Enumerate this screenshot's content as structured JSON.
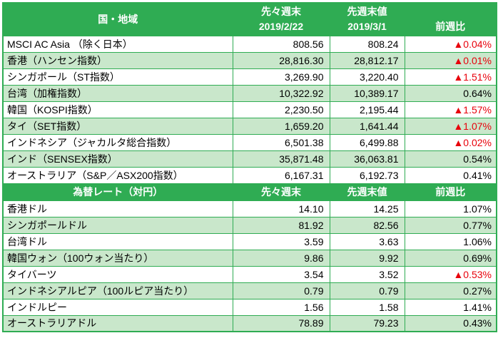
{
  "colors": {
    "header_green": "#2FAC53",
    "row_light_green": "#C9E7CB",
    "border_green": "#2FAC53",
    "negative_red": "#E8000B",
    "header_text": "#FFFFFF"
  },
  "table": {
    "indices": {
      "header": {
        "region": "国・地域",
        "col_prev2_line1": "先々週末",
        "col_prev2_line2": "2019/2/22",
        "col_prev_line1": "先週末値",
        "col_prev_line2": "2019/3/1",
        "col_change": "前週比"
      },
      "rows": [
        {
          "name": "MSCI AC Asia （除く日本）",
          "prev2": "808.56",
          "prev": "808.24",
          "change": "▲0.04%",
          "negative": true
        },
        {
          "name": "香港（ハンセン指数）",
          "prev2": "28,816.30",
          "prev": "28,812.17",
          "change": "▲0.01%",
          "negative": true
        },
        {
          "name": "シンガポール（ST指数）",
          "prev2": "3,269.90",
          "prev": "3,220.40",
          "change": "▲1.51%",
          "negative": true
        },
        {
          "name": "台湾（加権指数）",
          "prev2": "10,322.92",
          "prev": "10,389.17",
          "change": "0.64%",
          "negative": false
        },
        {
          "name": "韓国（KOSPI指数）",
          "prev2": "2,230.50",
          "prev": "2,195.44",
          "change": "▲1.57%",
          "negative": true
        },
        {
          "name": "タイ（SET指数）",
          "prev2": "1,659.20",
          "prev": "1,641.44",
          "change": "▲1.07%",
          "negative": true
        },
        {
          "name": "インドネシア（ジャカルタ総合指数）",
          "prev2": "6,501.38",
          "prev": "6,499.88",
          "change": "▲0.02%",
          "negative": true
        },
        {
          "name": "インド（SENSEX指数）",
          "prev2": "35,871.48",
          "prev": "36,063.81",
          "change": "0.54%",
          "negative": false
        },
        {
          "name": "オーストラリア（S&P／ASX200指数）",
          "prev2": "6,167.31",
          "prev": "6,192.73",
          "change": "0.41%",
          "negative": false
        }
      ]
    },
    "fx": {
      "header": {
        "label": "為替レート（対円）",
        "col_prev2": "先々週末",
        "col_prev": "先週末値",
        "col_change": "前週比"
      },
      "rows": [
        {
          "name": "香港ドル",
          "prev2": "14.10",
          "prev": "14.25",
          "change": "1.07%",
          "negative": false
        },
        {
          "name": "シンガポールドル",
          "prev2": "81.92",
          "prev": "82.56",
          "change": "0.77%",
          "negative": false
        },
        {
          "name": "台湾ドル",
          "prev2": "3.59",
          "prev": "3.63",
          "change": "1.06%",
          "negative": false
        },
        {
          "name": "韓国ウォン（100ウォン当たり）",
          "prev2": "9.86",
          "prev": "9.92",
          "change": "0.69%",
          "negative": false
        },
        {
          "name": "タイバーツ",
          "prev2": "3.54",
          "prev": "3.52",
          "change": "▲0.53%",
          "negative": true
        },
        {
          "name": "インドネシアルピア（100ルピア当たり）",
          "prev2": "0.79",
          "prev": "0.79",
          "change": "0.27%",
          "negative": false
        },
        {
          "name": "インドルピー",
          "prev2": "1.56",
          "prev": "1.58",
          "change": "1.41%",
          "negative": false
        },
        {
          "name": "オーストラリアドル",
          "prev2": "78.89",
          "prev": "79.23",
          "change": "0.43%",
          "negative": false
        }
      ]
    }
  }
}
